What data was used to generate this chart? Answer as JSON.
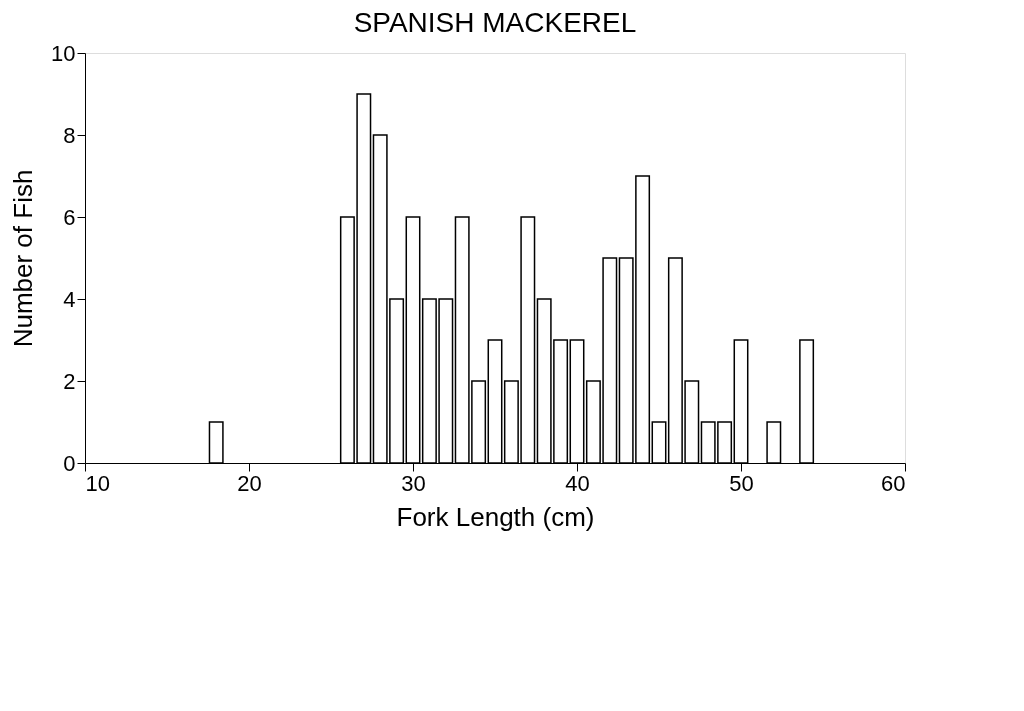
{
  "chart_data": {
    "type": "bar",
    "title": "SPANISH MACKEREL",
    "xlabel": "Fork Length (cm)",
    "ylabel": "Number of Fish",
    "x": [
      18,
      26,
      27,
      28,
      29,
      30,
      31,
      32,
      33,
      34,
      35,
      36,
      37,
      38,
      39,
      40,
      41,
      42,
      43,
      44,
      45,
      46,
      47,
      48,
      49,
      50,
      52,
      54
    ],
    "series": [
      {
        "color": "#ffffff",
        "values": [
          1,
          6,
          9,
          8,
          4,
          6,
          4,
          4,
          6,
          2,
          3,
          2,
          6,
          4,
          3,
          3,
          2,
          5,
          5,
          7,
          1,
          5,
          2,
          1,
          1,
          3,
          1,
          3
        ]
      }
    ],
    "xlim": [
      10,
      60
    ],
    "xticks": [
      10,
      20,
      30,
      40,
      50,
      60
    ],
    "ylim": [
      0,
      10
    ],
    "yticks": [
      0,
      2,
      4,
      6,
      8,
      10
    ],
    "grid": false
  }
}
